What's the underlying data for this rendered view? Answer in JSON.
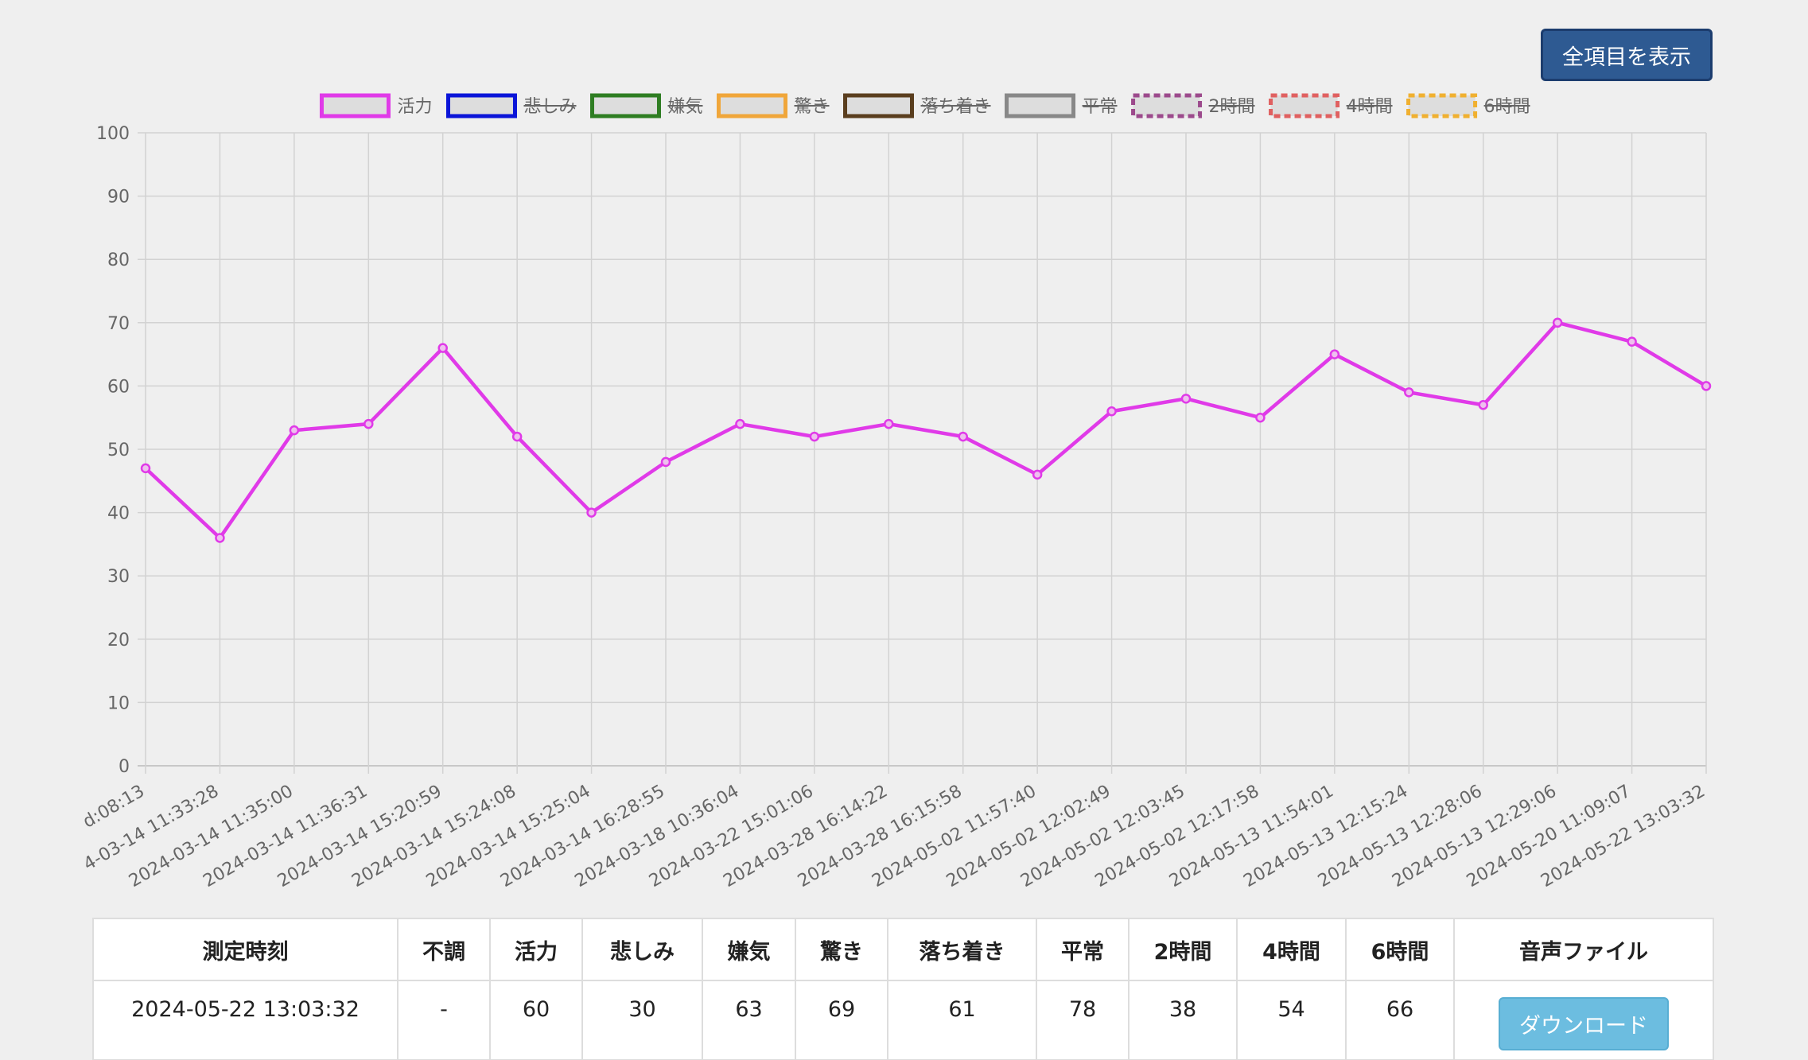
{
  "button": "全項目を表示",
  "chart_data": {
    "type": "line",
    "categories": [
      "d:08:13",
      "4-03-14 11:33:28",
      "2024-03-14 11:35:00",
      "2024-03-14 11:36:31",
      "2024-03-14 15:20:59",
      "2024-03-14 15:24:08",
      "2024-03-14 15:25:04",
      "2024-03-14 16:28:55",
      "2024-03-18 10:36:04",
      "2024-03-22 15:01:06",
      "2024-03-28 16:14:22",
      "2024-03-28 16:15:58",
      "2024-05-02 11:57:40",
      "2024-05-02 12:02:49",
      "2024-05-02 12:03:45",
      "2024-05-02 12:17:58",
      "2024-05-13 11:54:01",
      "2024-05-13 12:15:24",
      "2024-05-13 12:28:06",
      "2024-05-13 12:29:06",
      "2024-05-20 11:09:07",
      "2024-05-22 13:03:32"
    ],
    "series": [
      {
        "name": "活力",
        "color": "#e03ae8",
        "hidden": false,
        "dashed": false,
        "values": [
          47,
          36,
          53,
          54,
          66,
          52,
          40,
          48,
          54,
          52,
          54,
          52,
          46,
          56,
          58,
          55,
          65,
          59,
          57,
          70,
          67,
          60
        ]
      },
      {
        "name": "悲しみ",
        "color": "#0a14d8",
        "hidden": true,
        "dashed": false
      },
      {
        "name": "嫌気",
        "color": "#2e7d22",
        "hidden": true,
        "dashed": false
      },
      {
        "name": "驚き",
        "color": "#f0a63a",
        "hidden": true,
        "dashed": false
      },
      {
        "name": "落ち着き",
        "color": "#5a3e1e",
        "hidden": true,
        "dashed": false
      },
      {
        "name": "平常",
        "color": "#888888",
        "hidden": true,
        "dashed": false
      },
      {
        "name": "2時間",
        "color": "#9c4a8c",
        "hidden": true,
        "dashed": true
      },
      {
        "name": "4時間",
        "color": "#e06060",
        "hidden": true,
        "dashed": true
      },
      {
        "name": "6時間",
        "color": "#f0b030",
        "hidden": true,
        "dashed": true
      }
    ],
    "ylim": [
      0,
      100
    ],
    "yticks": [
      0,
      10,
      20,
      30,
      40,
      50,
      60,
      70,
      80,
      90,
      100
    ],
    "grid": true,
    "legend": "top"
  },
  "table": {
    "headers": [
      "測定時刻",
      "不調",
      "活力",
      "悲しみ",
      "嫌気",
      "驚き",
      "落ち着き",
      "平常",
      "2時間",
      "4時間",
      "6時間",
      "音声ファイル"
    ],
    "rows": [
      [
        "2024-05-22 13:03:32",
        "-",
        60,
        30,
        63,
        69,
        61,
        78,
        38,
        54,
        66,
        "ダウンロード"
      ]
    ]
  }
}
